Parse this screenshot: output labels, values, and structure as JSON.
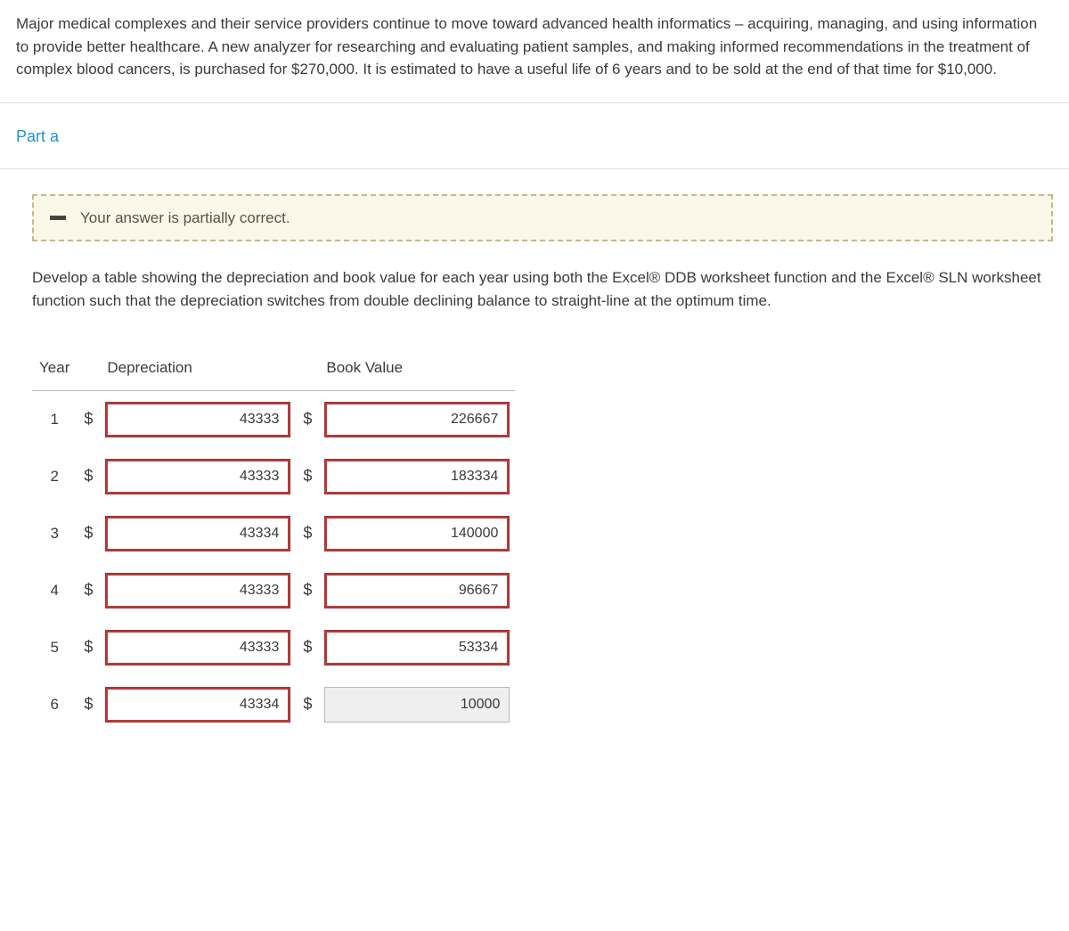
{
  "problem": {
    "text": "Major medical complexes and their service providers continue to move toward advanced health informatics – acquiring, managing, and using information to provide better healthcare. A new analyzer for researching and evaluating patient samples, and making informed recommendations in the treatment of complex blood cancers, is purchased for $270,000. It is estimated to have a useful life of 6 years and to be sold at the end of that time for $10,000."
  },
  "part": {
    "label": "Part a",
    "feedback": "Your answer is partially correct.",
    "instruction": "Develop a table showing the depreciation and book value for each year using both the Excel® DDB worksheet function and the Excel® SLN worksheet function such that the depreciation switches from double declining balance to straight-line at the optimum time."
  },
  "table": {
    "headers": {
      "year": "Year",
      "depreciation": "Depreciation",
      "book_value": "Book Value"
    },
    "currency_symbol": "$",
    "rows": [
      {
        "year": "1",
        "depreciation": "43333",
        "dep_state": "incorrect",
        "book_value": "226667",
        "bv_state": "incorrect"
      },
      {
        "year": "2",
        "depreciation": "43333",
        "dep_state": "incorrect",
        "book_value": "183334",
        "bv_state": "incorrect"
      },
      {
        "year": "3",
        "depreciation": "43334",
        "dep_state": "incorrect",
        "book_value": "140000",
        "bv_state": "incorrect"
      },
      {
        "year": "4",
        "depreciation": "43333",
        "dep_state": "incorrect",
        "book_value": "96667",
        "bv_state": "incorrect"
      },
      {
        "year": "5",
        "depreciation": "43333",
        "dep_state": "incorrect",
        "book_value": "53334",
        "bv_state": "incorrect"
      },
      {
        "year": "6",
        "depreciation": "43334",
        "dep_state": "incorrect",
        "book_value": "10000",
        "bv_state": "neutral"
      }
    ]
  },
  "style": {
    "accent_color": "#1a96d4",
    "feedback_bg": "#fbf8e9",
    "feedback_border": "#c9b887",
    "incorrect_border": "#bb3a3a",
    "neutral_border": "#b7b7b7",
    "neutral_bg": "#efefef",
    "divider": "#e0e0e0",
    "font_size_body": 17
  }
}
